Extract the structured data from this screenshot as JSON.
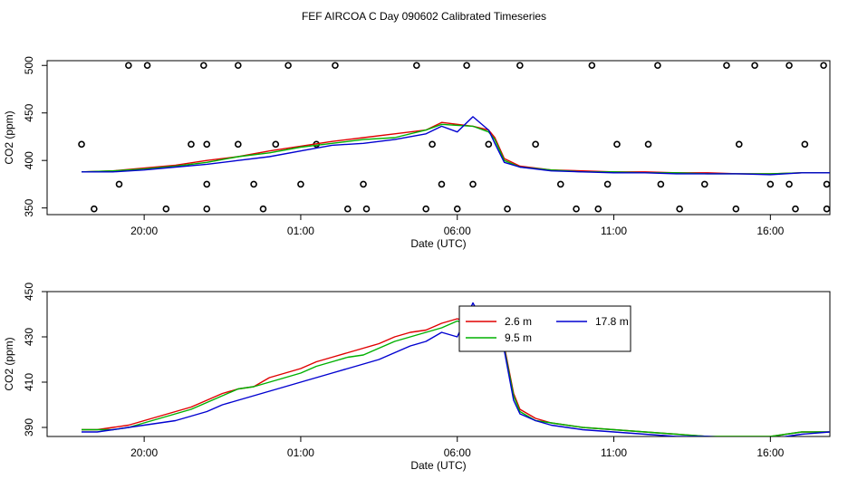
{
  "figure_title": "FEF AIRCOA C  Day 090602  Calibrated Timeseries",
  "colors": {
    "2.6 m": "#e00000",
    "9.5 m": "#00b000",
    "17.8 m": "#0000d0"
  },
  "chart_data": [
    {
      "type": "line",
      "title": "",
      "xlabel": "Date (UTC)",
      "ylabel": "CO2 (ppm)",
      "x_unit": "hours since 2009-06-02 00:00 UTC (tick labels show HH:MM)",
      "xlim": [
        16.9,
        41.9
      ],
      "ylim": [
        343,
        505
      ],
      "xticks": [
        20,
        25,
        30,
        35,
        40
      ],
      "xtick_labels": [
        "20:00",
        "01:00",
        "06:00",
        "11:00",
        "16:00"
      ],
      "yticks": [
        350,
        400,
        450,
        500
      ],
      "ytick_labels": [
        "350",
        "400",
        "450",
        "500"
      ],
      "grid": false,
      "legend": "none",
      "series": [
        {
          "name": "2.6 m",
          "x": [
            18.0,
            19.0,
            20.0,
            21.0,
            22.0,
            23.0,
            24.0,
            25.0,
            26.0,
            27.0,
            28.0,
            29.0,
            29.5,
            30.0,
            30.5,
            31.0,
            31.2,
            31.5,
            32.0,
            33.0,
            34.0,
            35.0,
            36.0,
            37.0,
            38.0,
            39.0,
            40.0,
            41.0,
            41.9
          ],
          "y": [
            388,
            389,
            392,
            395,
            400,
            404,
            410,
            415,
            420,
            424,
            428,
            432,
            440,
            438,
            436,
            432,
            424,
            402,
            394,
            390,
            389,
            388,
            388,
            387,
            387,
            386,
            386,
            387,
            387
          ]
        },
        {
          "name": "9.5 m",
          "x": [
            18.0,
            19.0,
            20.0,
            21.0,
            22.0,
            23.0,
            24.0,
            25.0,
            26.0,
            27.0,
            28.0,
            29.0,
            29.5,
            30.0,
            30.5,
            31.0,
            31.2,
            31.5,
            32.0,
            33.0,
            34.0,
            35.0,
            36.0,
            37.0,
            38.0,
            39.0,
            40.0,
            41.0,
            41.9
          ],
          "y": [
            388,
            389,
            391,
            394,
            398,
            404,
            408,
            414,
            418,
            422,
            424,
            432,
            438,
            437,
            436,
            430,
            422,
            400,
            393,
            390,
            388,
            388,
            387,
            387,
            386,
            386,
            386,
            387,
            387
          ]
        },
        {
          "name": "17.8 m",
          "x": [
            18.0,
            19.0,
            20.0,
            21.0,
            22.0,
            23.0,
            24.0,
            25.0,
            26.0,
            27.0,
            28.0,
            29.0,
            29.5,
            30.0,
            30.5,
            31.0,
            31.2,
            31.5,
            32.0,
            33.0,
            34.0,
            35.0,
            36.0,
            37.0,
            38.0,
            39.0,
            40.0,
            41.0,
            41.9
          ],
          "y": [
            388,
            388,
            390,
            393,
            396,
            400,
            404,
            410,
            416,
            418,
            422,
            428,
            436,
            430,
            446,
            432,
            418,
            398,
            393,
            389,
            388,
            387,
            387,
            386,
            386,
            386,
            385,
            387,
            387
          ]
        }
      ],
      "flag_points": {
        "x": [
          19.5,
          20.1,
          21.9,
          23.0,
          24.6,
          26.1,
          28.7,
          30.3,
          32.0,
          34.3,
          36.4,
          38.6,
          39.5,
          40.6,
          41.7,
          18.0,
          21.5,
          22.0,
          23.0,
          24.2,
          25.5,
          29.2,
          31.0,
          32.5,
          35.1,
          36.1,
          39.0,
          41.1,
          19.2,
          22.0,
          23.5,
          25.0,
          27.0,
          29.5,
          30.5,
          33.3,
          34.8,
          36.5,
          37.9,
          40.0,
          40.6,
          41.8,
          18.4,
          20.7,
          22.0,
          23.8,
          26.5,
          27.1,
          29.0,
          30.0,
          31.6,
          33.8,
          34.5,
          37.1,
          38.9,
          40.8,
          41.8
        ],
        "y": [
          500,
          500,
          500,
          500,
          500,
          500,
          500,
          500,
          500,
          500,
          500,
          500,
          500,
          500,
          500,
          417,
          417,
          417,
          417,
          417,
          417,
          417,
          417,
          417,
          417,
          417,
          417,
          417,
          375,
          375,
          375,
          375,
          375,
          375,
          375,
          375,
          375,
          375,
          375,
          375,
          375,
          375,
          349,
          349,
          349,
          349,
          349,
          349,
          349,
          349,
          349,
          349,
          349,
          349,
          349,
          349,
          349
        ]
      }
    },
    {
      "type": "line",
      "title": "",
      "xlabel": "Date (UTC)",
      "ylabel": "CO2 (ppm)",
      "x_unit": "hours since 2009-06-02 00:00 UTC (tick labels show HH:MM)",
      "xlim": [
        16.9,
        41.9
      ],
      "ylim": [
        386,
        450
      ],
      "xticks": [
        20,
        25,
        30,
        35,
        40
      ],
      "xtick_labels": [
        "20:00",
        "01:00",
        "06:00",
        "11:00",
        "16:00"
      ],
      "yticks": [
        390,
        410,
        430,
        450
      ],
      "ytick_labels": [
        "390",
        "410",
        "430",
        "450"
      ],
      "grid": false,
      "legend": "top-center",
      "legend_entries": [
        "2.6 m",
        "17.8 m",
        "9.5 m"
      ],
      "series": [
        {
          "name": "2.6 m",
          "x": [
            18.0,
            18.5,
            19.0,
            19.5,
            20.0,
            20.5,
            21.0,
            21.5,
            22.0,
            22.5,
            23.0,
            23.5,
            24.0,
            24.5,
            25.0,
            25.5,
            26.0,
            26.5,
            27.0,
            27.5,
            28.0,
            28.5,
            29.0,
            29.5,
            30.0,
            30.5,
            31.0,
            31.5,
            31.8,
            32.0,
            32.5,
            33.0,
            34.0,
            35.0,
            36.0,
            37.0,
            38.0,
            39.0,
            40.0,
            40.5,
            41.0,
            41.9
          ],
          "y": [
            389,
            389,
            390,
            391,
            393,
            395,
            397,
            399,
            402,
            405,
            407,
            408,
            412,
            414,
            416,
            419,
            421,
            423,
            425,
            427,
            430,
            432,
            433,
            436,
            438,
            436,
            434,
            426,
            405,
            398,
            394,
            392,
            390,
            389,
            388,
            387,
            386,
            386,
            386,
            387,
            388,
            388
          ]
        },
        {
          "name": "9.5 m",
          "x": [
            18.0,
            18.5,
            19.0,
            19.5,
            20.0,
            20.5,
            21.0,
            21.5,
            22.0,
            22.5,
            23.0,
            23.5,
            24.0,
            24.5,
            25.0,
            25.5,
            26.0,
            26.5,
            27.0,
            27.5,
            28.0,
            28.5,
            29.0,
            29.5,
            30.0,
            30.5,
            31.0,
            31.5,
            31.8,
            32.0,
            32.5,
            33.0,
            34.0,
            35.0,
            36.0,
            37.0,
            38.0,
            39.0,
            40.0,
            40.5,
            41.0,
            41.9
          ],
          "y": [
            389,
            389,
            389,
            390,
            392,
            394,
            396,
            398,
            401,
            404,
            407,
            408,
            410,
            412,
            414,
            417,
            419,
            421,
            422,
            425,
            428,
            430,
            432,
            434,
            437,
            435,
            433,
            425,
            404,
            397,
            393,
            392,
            390,
            389,
            388,
            387,
            386,
            386,
            386,
            387,
            388,
            388
          ]
        },
        {
          "name": "17.8 m",
          "x": [
            18.0,
            18.5,
            19.0,
            19.5,
            20.0,
            20.5,
            21.0,
            21.5,
            22.0,
            22.5,
            23.0,
            23.5,
            24.0,
            24.5,
            25.0,
            25.5,
            26.0,
            26.5,
            27.0,
            27.5,
            28.0,
            28.5,
            29.0,
            29.5,
            30.0,
            30.5,
            31.0,
            31.5,
            31.8,
            32.0,
            32.5,
            33.0,
            34.0,
            35.0,
            36.0,
            37.0,
            38.0,
            39.0,
            40.0,
            40.5,
            41.0,
            41.9
          ],
          "y": [
            388,
            388,
            389,
            390,
            391,
            392,
            393,
            395,
            397,
            400,
            402,
            404,
            406,
            408,
            410,
            412,
            414,
            416,
            418,
            420,
            423,
            426,
            428,
            432,
            430,
            445,
            432,
            424,
            402,
            396,
            393,
            391,
            389,
            388,
            387,
            386,
            386,
            385,
            385,
            386,
            387,
            388
          ]
        }
      ]
    }
  ]
}
